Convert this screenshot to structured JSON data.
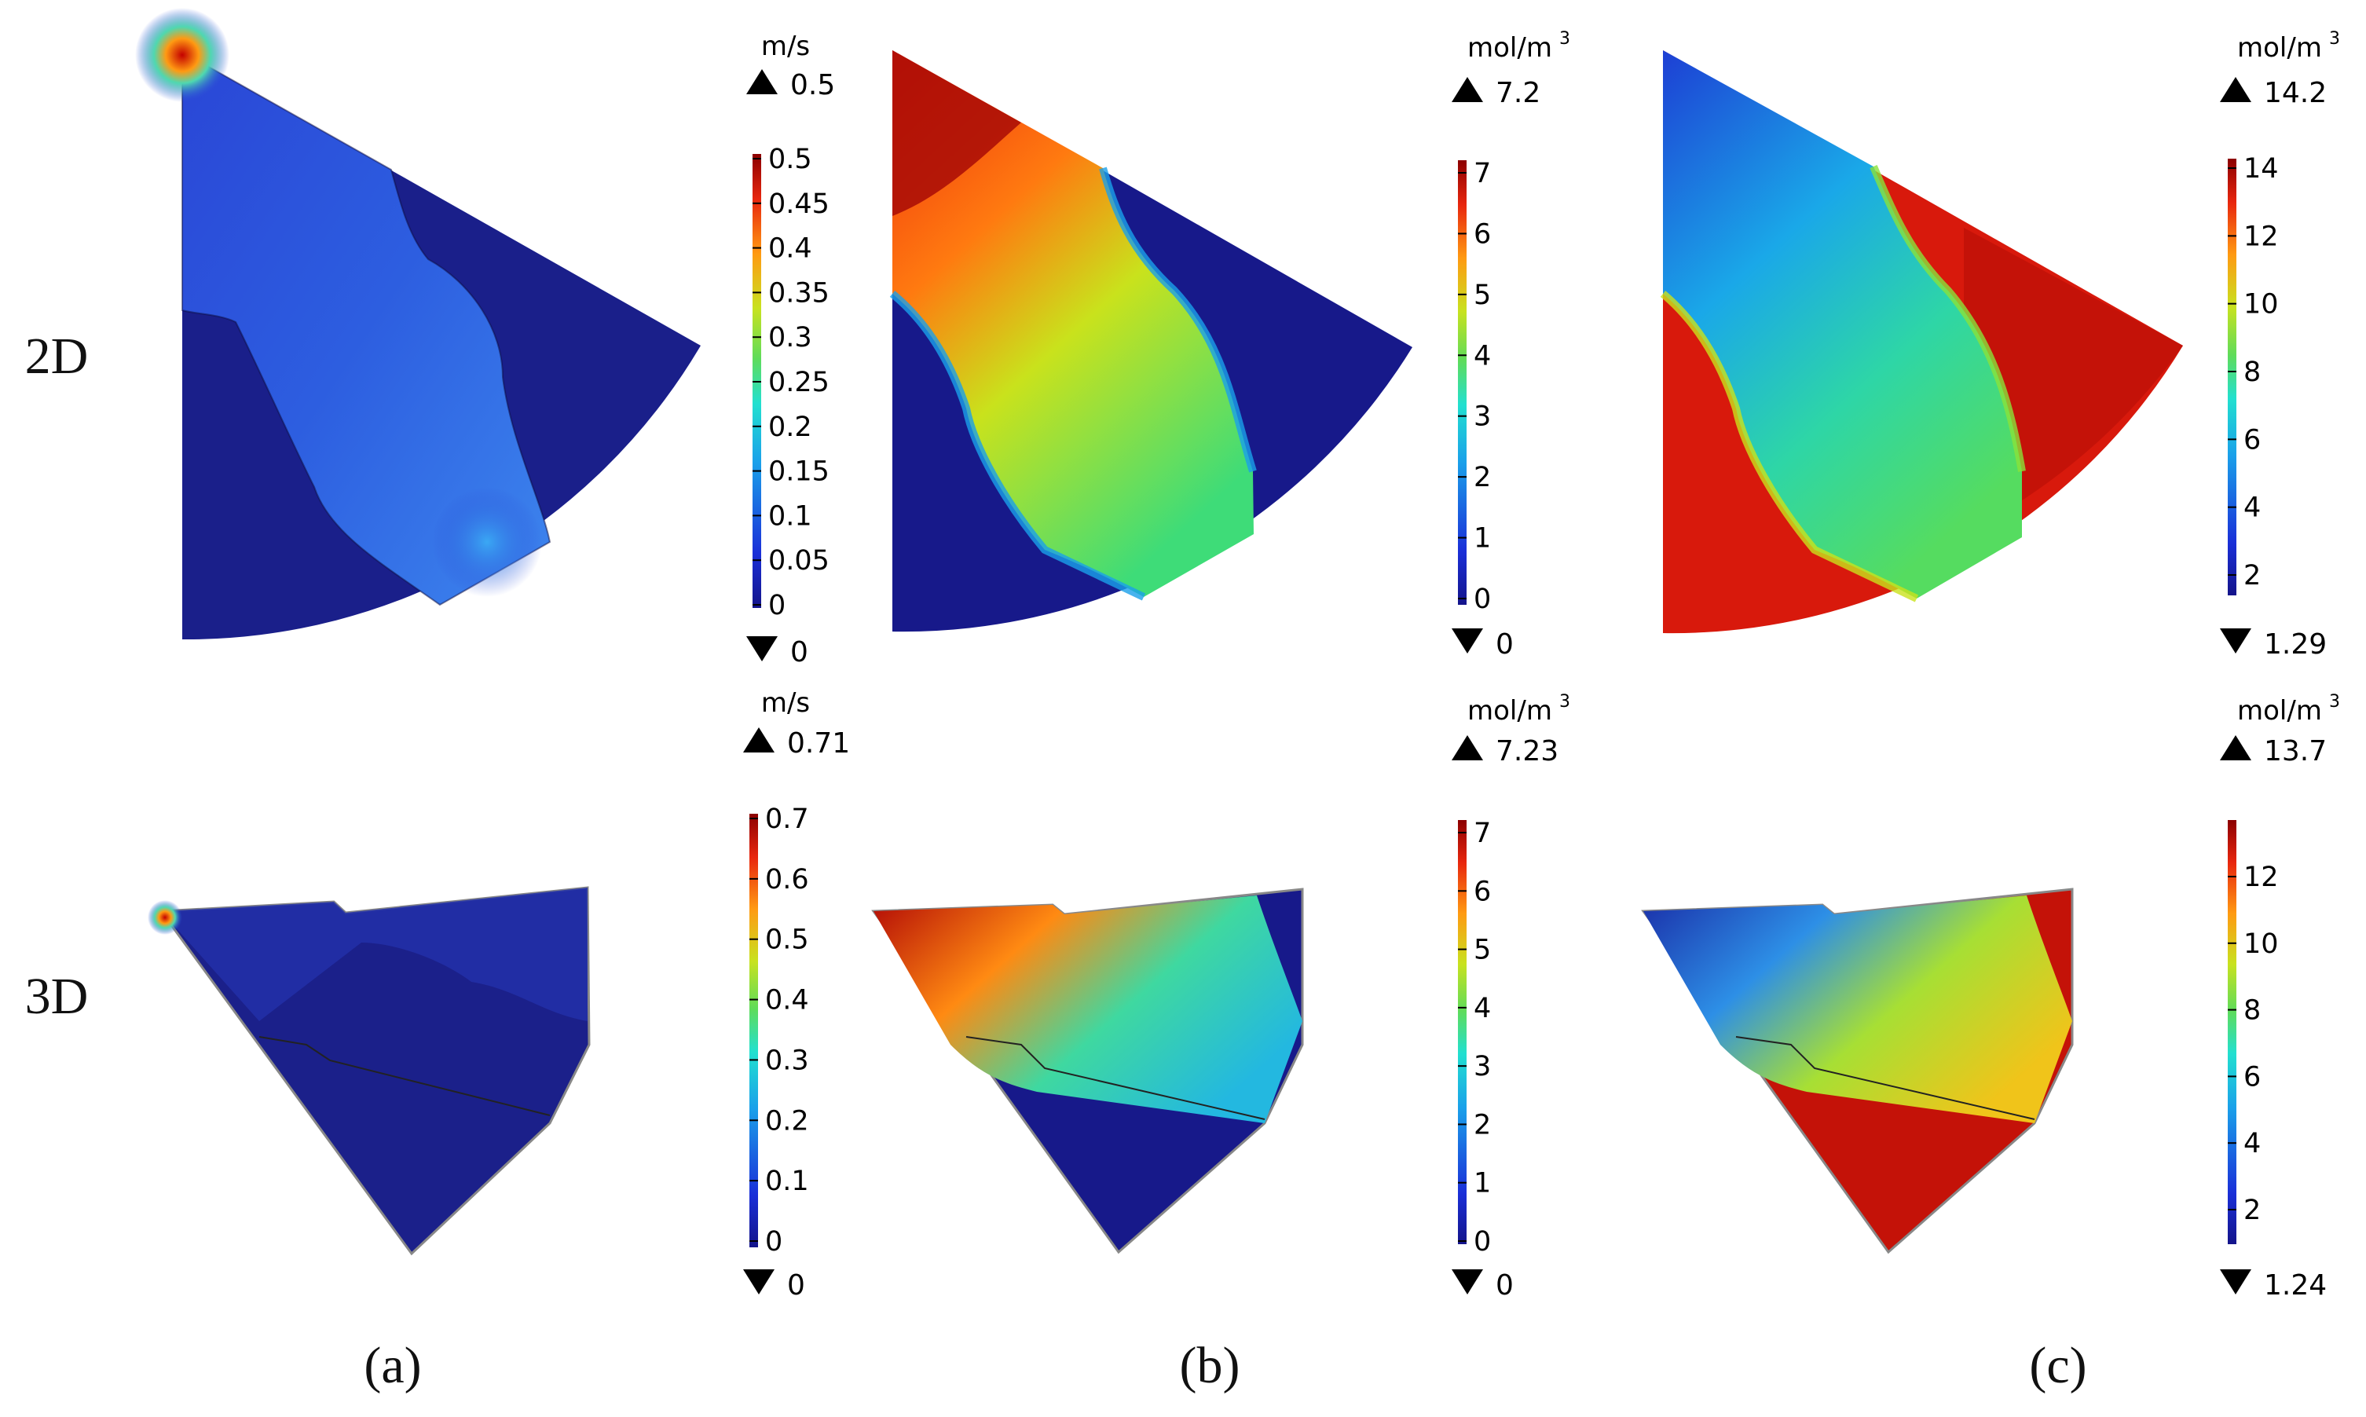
{
  "row_labels": {
    "top": "2D",
    "bottom": "3D"
  },
  "captions": [
    "(a)",
    "(b)",
    "(c)"
  ],
  "colorbars": {
    "a2d": {
      "unit": "m/s",
      "sup": "",
      "max_label": "0.5",
      "min_label": "0",
      "ticks": [
        "0.5",
        "0.45",
        "0.4",
        "0.35",
        "0.3",
        "0.25",
        "0.2",
        "0.15",
        "0.1",
        "0.05",
        "0"
      ]
    },
    "b2d": {
      "unit": "mol/m",
      "sup": "3",
      "max_label": "7.2",
      "min_label": "0",
      "ticks": [
        "7",
        "6",
        "5",
        "4",
        "3",
        "2",
        "1",
        "0"
      ]
    },
    "c2d": {
      "unit": "mol/m",
      "sup": "3",
      "max_label": "14.2",
      "min_label": "1.29",
      "ticks": [
        "14",
        "12",
        "10",
        "8",
        "6",
        "4",
        "2"
      ]
    },
    "a3d": {
      "unit": "m/s",
      "sup": "",
      "max_label": "0.71",
      "min_label": "0",
      "ticks": [
        "0.7",
        "0.6",
        "0.5",
        "0.4",
        "0.3",
        "0.2",
        "0.1",
        "0"
      ]
    },
    "b3d": {
      "unit": "mol/m",
      "sup": "3",
      "max_label": "7.23",
      "min_label": "0",
      "ticks": [
        "7",
        "6",
        "5",
        "4",
        "3",
        "2",
        "1",
        "0"
      ]
    },
    "c3d": {
      "unit": "mol/m",
      "sup": "3",
      "max_label": "13.7",
      "min_label": "1.24",
      "ticks": [
        "12",
        "10",
        "8",
        "6",
        "4",
        "2"
      ]
    }
  },
  "colors": {
    "jet_low": "#15157f",
    "jet_mid": "#5fd65a",
    "jet_high": "#8c0000"
  }
}
